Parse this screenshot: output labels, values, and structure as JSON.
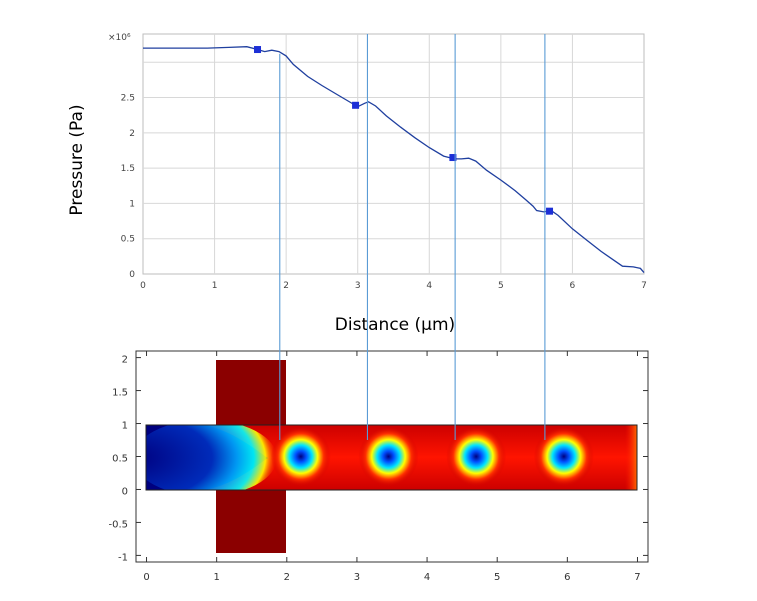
{
  "chart_data": [
    {
      "type": "line",
      "title": "",
      "xlabel": "Distance (μm)",
      "ylabel": "Pressure (Pa)",
      "y_exponent_label": "×10⁶",
      "xlim": [
        0,
        7
      ],
      "ylim": [
        0,
        3.4
      ],
      "x_ticks": [
        "0",
        "1",
        "2",
        "3",
        "4",
        "5",
        "6",
        "7"
      ],
      "y_ticks": [
        "0",
        "0.5",
        "1",
        "1.5",
        "2",
        "2.5"
      ],
      "grid": true,
      "series": [
        {
          "color": "#1f3f9f",
          "x": [
            0,
            0.3,
            0.6,
            0.9,
            1.2,
            1.45,
            1.6,
            1.7,
            1.8,
            1.9,
            2.0,
            2.1,
            2.3,
            2.5,
            2.7,
            2.9,
            3.0,
            3.1,
            3.15,
            3.25,
            3.4,
            3.6,
            3.8,
            4.0,
            4.2,
            4.35,
            4.45,
            4.55,
            4.65,
            4.8,
            5.0,
            5.2,
            5.35,
            5.45,
            5.5,
            5.6,
            5.7,
            5.8,
            6.0,
            6.2,
            6.4,
            6.6,
            6.7,
            6.85,
            6.95,
            7.0
          ],
          "y": [
            3.2,
            3.2,
            3.2,
            3.2,
            3.21,
            3.22,
            3.18,
            3.15,
            3.17,
            3.15,
            3.09,
            2.97,
            2.8,
            2.67,
            2.55,
            2.43,
            2.37,
            2.42,
            2.44,
            2.38,
            2.24,
            2.08,
            1.93,
            1.79,
            1.67,
            1.63,
            1.63,
            1.64,
            1.6,
            1.47,
            1.33,
            1.18,
            1.05,
            0.96,
            0.9,
            0.88,
            0.9,
            0.83,
            0.64,
            0.48,
            0.32,
            0.18,
            0.11,
            0.1,
            0.08,
            0.02
          ]
        }
      ],
      "markers": {
        "color": "#1c2fd6",
        "x": [
          1.6,
          2.97,
          4.33,
          5.68
        ],
        "y": [
          3.18,
          2.39,
          1.65,
          0.89
        ]
      }
    },
    {
      "type": "heatmap",
      "title": "",
      "xlabel": "",
      "ylabel": "",
      "xlim": [
        -0.15,
        7.15
      ],
      "ylim": [
        -1.1,
        2.1
      ],
      "x_ticks": [
        "0",
        "1",
        "2",
        "3",
        "4",
        "5",
        "6",
        "7"
      ],
      "y_ticks": [
        "-1",
        "-0.5",
        "0",
        "0.5",
        "1",
        "1.5",
        "2"
      ],
      "colormap": [
        "#00007f",
        "#0060ff",
        "#00e5ff",
        "#ffff00",
        "#ff3000",
        "#7f0000"
      ],
      "background_color": "#8b0000",
      "vortex_centers_x": [
        2.2,
        3.45,
        4.7,
        5.95
      ],
      "vortex_center_y": 0.5,
      "guide_lines_x": [
        1.9,
        3.15,
        4.4,
        5.68
      ],
      "guide_line_color": "#5a9bd5"
    }
  ]
}
